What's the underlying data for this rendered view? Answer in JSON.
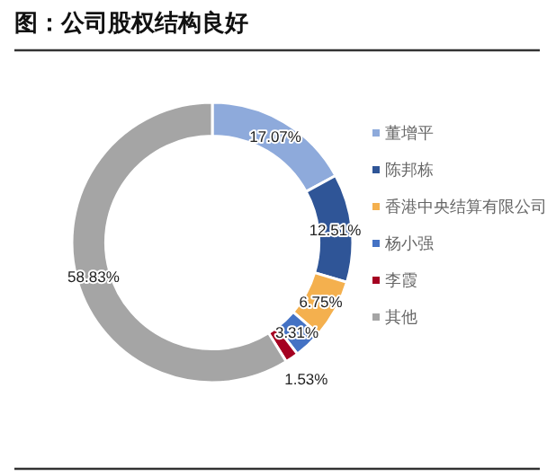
{
  "chart_data": {
    "type": "donut",
    "title": "图：公司股权结构良好",
    "categories": [
      "董增平",
      "陈邦栋",
      "香港中央结算有限公司",
      "杨小强",
      "李霞",
      "其他"
    ],
    "values": [
      17.07,
      12.51,
      6.75,
      3.31,
      1.53,
      58.83
    ],
    "value_labels": [
      "17.07%",
      "12.51%",
      "6.75%",
      "3.31%",
      "1.53%",
      "58.83%"
    ],
    "colors": [
      "#8eaadb",
      "#2f5597",
      "#f4b04e",
      "#4472c4",
      "#a50021",
      "#a5a5a5"
    ],
    "legend": "right"
  }
}
